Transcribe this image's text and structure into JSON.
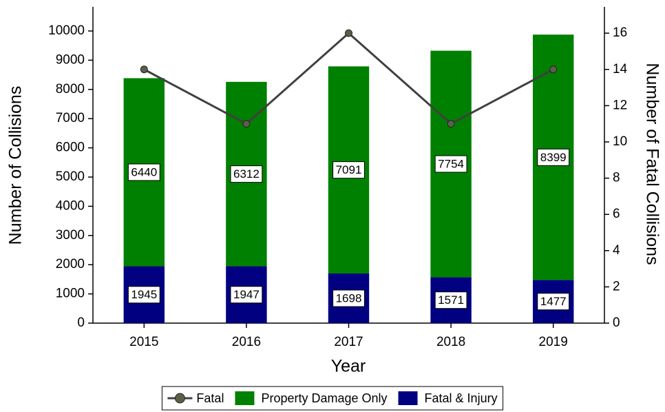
{
  "chart_data": {
    "type": "bar",
    "stacked": true,
    "xlabel": "Year",
    "ylabel": "Number of Collisions",
    "y2label": "Number of Fatal Collisions",
    "categories": [
      "2015",
      "2016",
      "2017",
      "2018",
      "2019"
    ],
    "series": [
      {
        "name": "Fatal & Injury",
        "type": "bar",
        "color": "#000080",
        "values": [
          1945,
          1947,
          1698,
          1571,
          1477
        ]
      },
      {
        "name": "Property Damage Only",
        "type": "bar",
        "color": "#008000",
        "values": [
          6440,
          6312,
          7091,
          7754,
          8399
        ]
      },
      {
        "name": "Fatal",
        "type": "line",
        "axis": "y2",
        "color": "#404040",
        "values": [
          14,
          11,
          16,
          11,
          14
        ]
      }
    ],
    "ylim": [
      0,
      10825
    ],
    "yticks": [
      0,
      1000,
      2000,
      3000,
      4000,
      5000,
      6000,
      7000,
      8000,
      9000,
      10000
    ],
    "y2lim": [
      0,
      17.45
    ],
    "y2ticks": [
      0,
      2,
      4,
      6,
      8,
      10,
      12,
      14,
      16
    ],
    "grid": false,
    "legend": "bottom"
  }
}
